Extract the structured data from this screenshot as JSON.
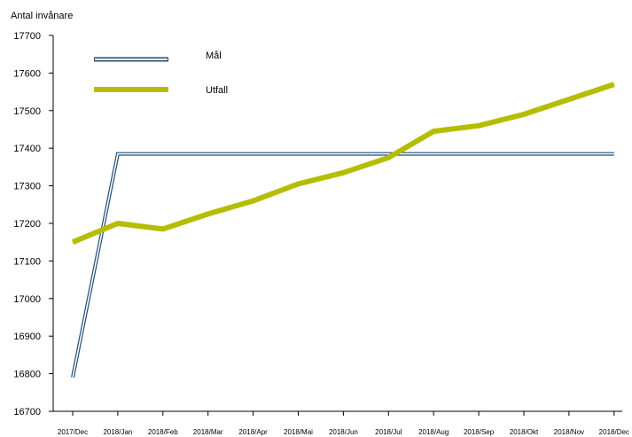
{
  "chart_data": {
    "type": "line",
    "ylabel": "Antal invånare",
    "xlabel": "",
    "title": "",
    "ylim": [
      16700,
      17700
    ],
    "yticks": [
      16700,
      16800,
      16900,
      17000,
      17100,
      17200,
      17300,
      17400,
      17500,
      17600,
      17700
    ],
    "categories": [
      "2017/Dec",
      "2018/Jan",
      "2018/Feb",
      "2018/Mar",
      "2018/Apr",
      "2018/Mai",
      "2018/Jun",
      "2018/Jul",
      "2018/Aug",
      "2018/Sep",
      "2018/Okt",
      "2018/Nov",
      "2018/Dec"
    ],
    "series": [
      {
        "name": "Mål",
        "style": "double",
        "color": "#1f4e79",
        "values": [
          16790,
          17385,
          17385,
          17385,
          17385,
          17385,
          17385,
          17385,
          17385,
          17385,
          17385,
          17385,
          17385
        ]
      },
      {
        "name": "Utfall",
        "style": "thick",
        "color": "#b5bd00",
        "values": [
          17150,
          17200,
          17185,
          17225,
          17260,
          17305,
          17335,
          17375,
          17445,
          17460,
          17490,
          17530,
          17570
        ]
      }
    ],
    "legend": "top-left",
    "grid": false
  }
}
